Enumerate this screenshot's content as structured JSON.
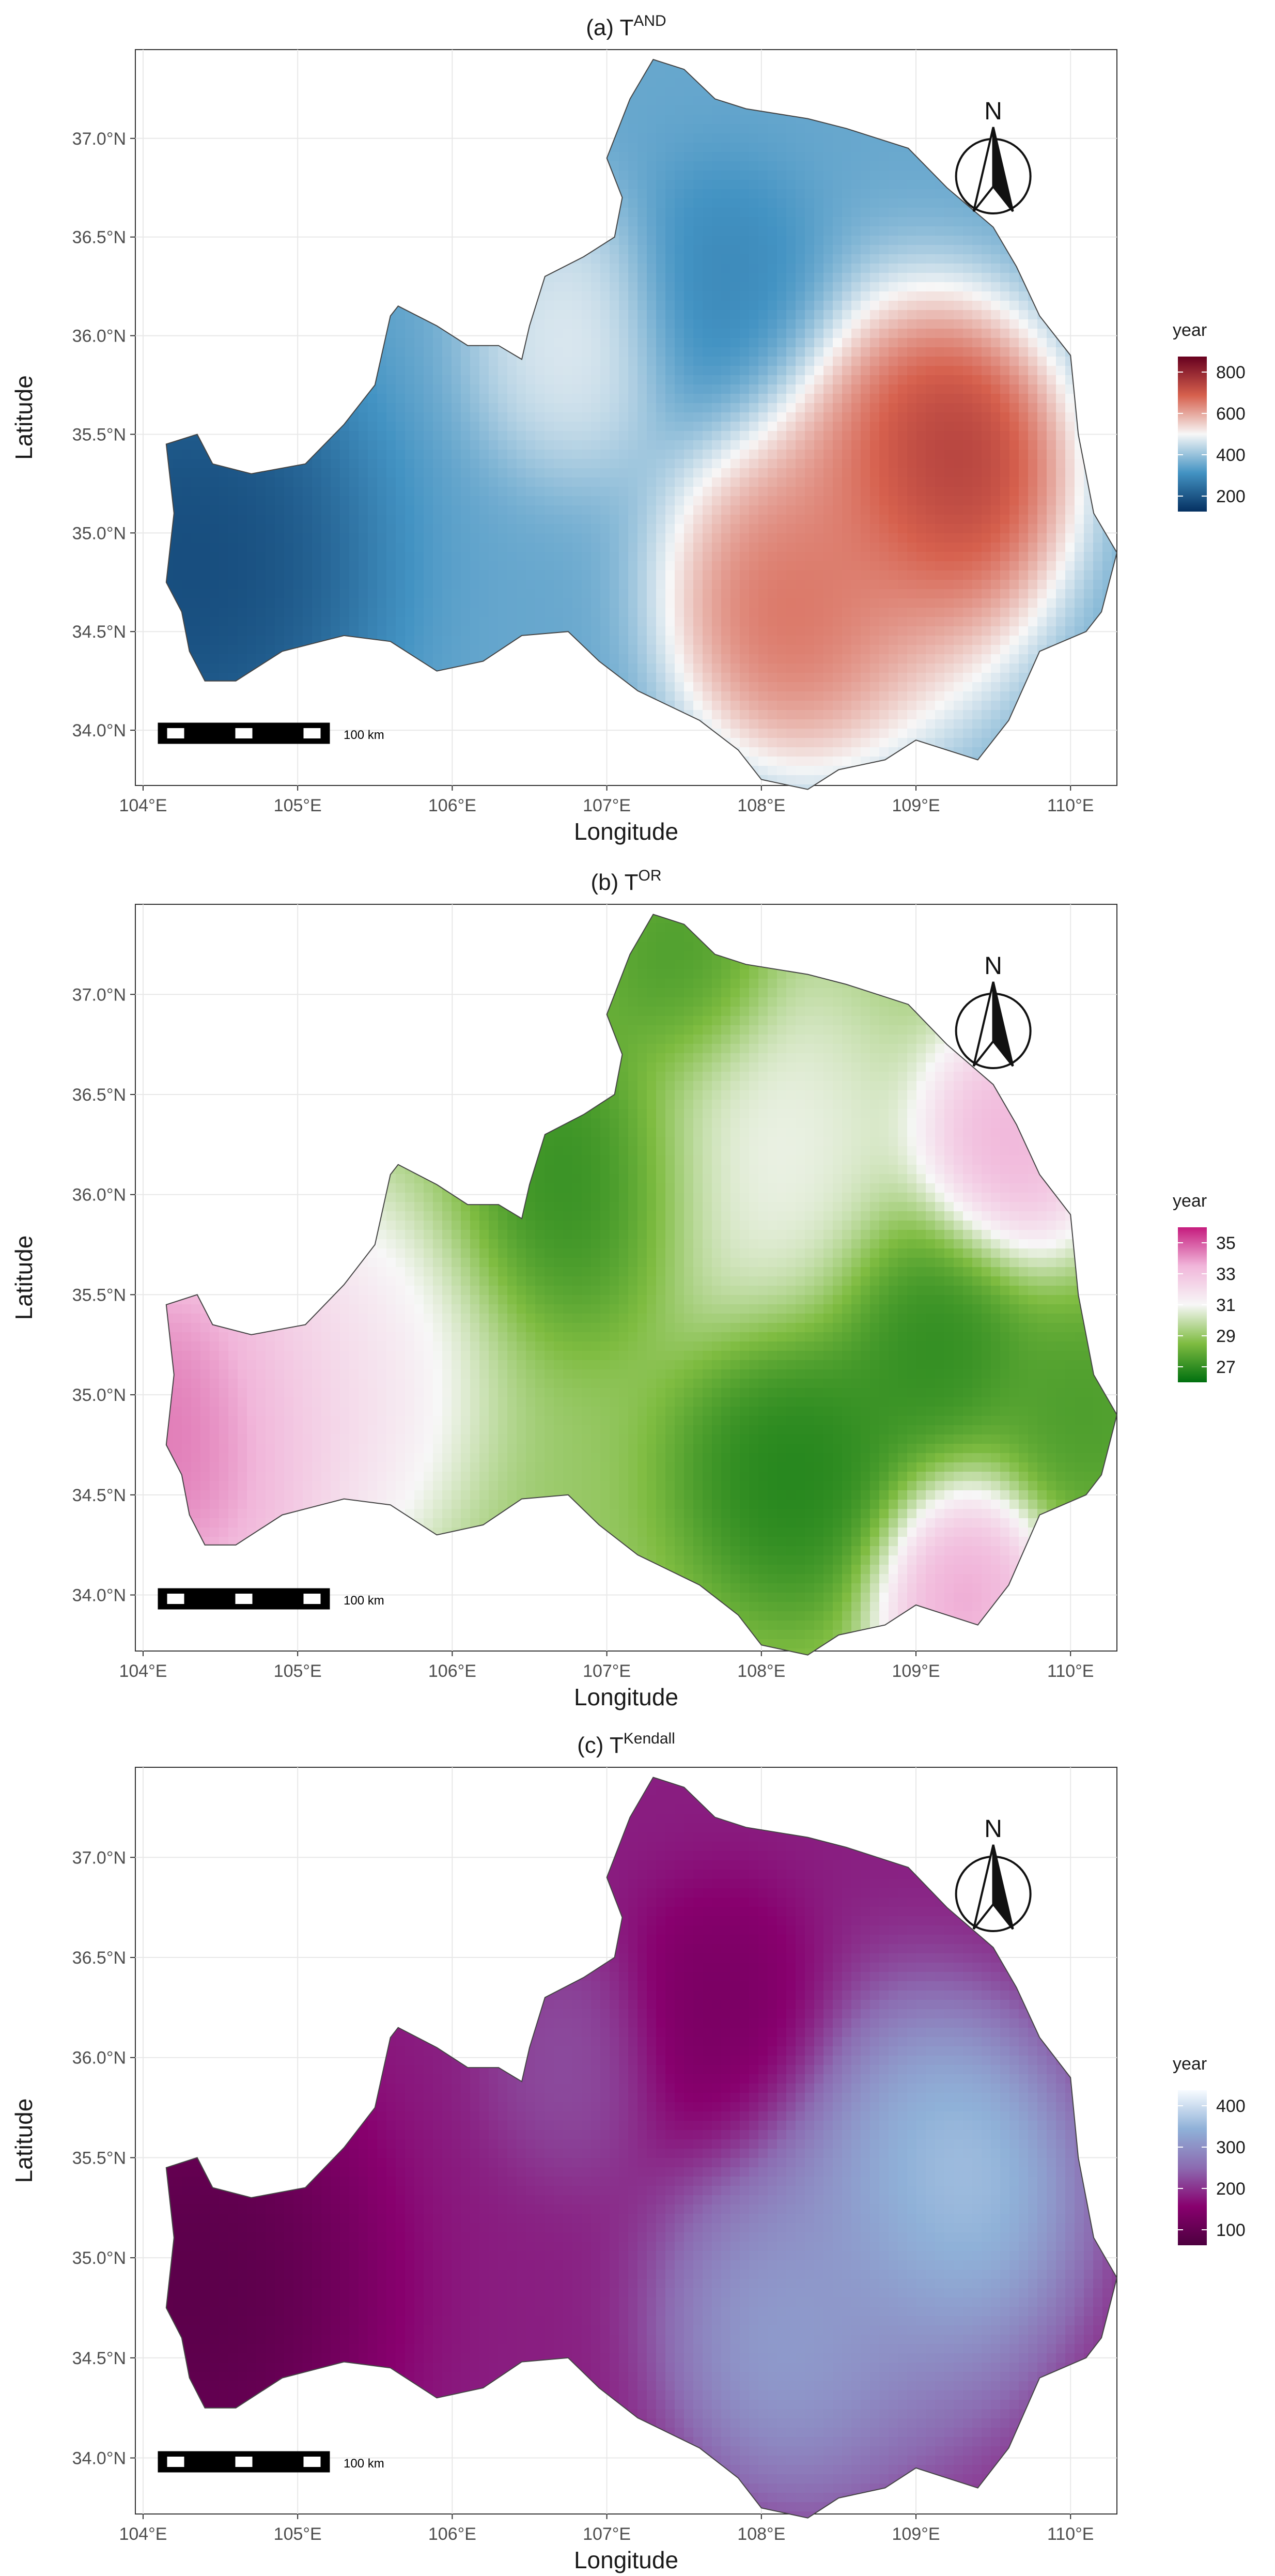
{
  "panels": [
    {
      "title": {
        "prefix": "(a)  T",
        "sup": "AND"
      },
      "legend": {
        "title": "year",
        "ticks": [
          "800",
          "600",
          "400",
          "200"
        ],
        "colors": [
          "#67001f",
          "#d6604d",
          "#f7f7f7",
          "#4393c3",
          "#053061"
        ]
      },
      "blobs": [
        {
          "lon": 109.15,
          "lat": 35.32,
          "level": 1.0,
          "sigma": 0.42
        },
        {
          "lon": 108.2,
          "lat": 34.62,
          "level": 0.82,
          "sigma": 0.38
        },
        {
          "lon": 108.6,
          "lat": 34.95,
          "level": 0.68,
          "sigma": 0.55
        },
        {
          "lon": 106.8,
          "lat": 35.98,
          "level": 0.5,
          "sigma": 0.35
        },
        {
          "lon": 104.3,
          "lat": 34.85,
          "level": 0.02,
          "sigma": 0.6
        },
        {
          "lon": 107.75,
          "lat": 36.15,
          "level": 0.2,
          "sigma": 0.35
        }
      ],
      "base_level": 0.3
    },
    {
      "title": {
        "prefix": "(b)  T",
        "sup": "OR"
      },
      "legend": {
        "title": "year",
        "ticks": [
          "35",
          "33",
          "31",
          "29",
          "27"
        ],
        "colors": [
          "#c51b7d",
          "#f1b6da",
          "#f7f7f7",
          "#7fbc41",
          "#00700f"
        ]
      },
      "blobs": [
        {
          "lon": 104.3,
          "lat": 34.85,
          "level": 1.0,
          "sigma": 0.55
        },
        {
          "lon": 105.2,
          "lat": 35.05,
          "level": 0.62,
          "sigma": 0.5
        },
        {
          "lon": 109.6,
          "lat": 36.25,
          "level": 0.85,
          "sigma": 0.32
        },
        {
          "lon": 109.3,
          "lat": 34.0,
          "level": 0.88,
          "sigma": 0.3
        },
        {
          "lon": 108.0,
          "lat": 36.2,
          "level": 0.52,
          "sigma": 0.5
        },
        {
          "lon": 106.9,
          "lat": 36.1,
          "level": 0.05,
          "sigma": 0.4
        },
        {
          "lon": 107.5,
          "lat": 37.1,
          "level": 0.1,
          "sigma": 0.3
        },
        {
          "lon": 109.1,
          "lat": 35.3,
          "level": 0.05,
          "sigma": 0.35
        },
        {
          "lon": 108.2,
          "lat": 34.65,
          "level": 0.02,
          "sigma": 0.4
        },
        {
          "lon": 110.1,
          "lat": 34.9,
          "level": 0.12,
          "sigma": 0.3
        }
      ],
      "base_level": 0.3
    },
    {
      "title": {
        "prefix": "(c)  T",
        "sup": "Kendall"
      },
      "legend": {
        "title": "year",
        "ticks": [
          "400",
          "300",
          "200",
          "100"
        ],
        "colors": [
          "#f7fbff",
          "#8fb1d8",
          "#8c6bb1",
          "#88006e",
          "#4d003f"
        ]
      },
      "blobs": [
        {
          "lon": 109.15,
          "lat": 35.32,
          "level": 1.0,
          "sigma": 0.45
        },
        {
          "lon": 108.2,
          "lat": 34.62,
          "level": 0.78,
          "sigma": 0.4
        },
        {
          "lon": 108.7,
          "lat": 35.0,
          "level": 0.6,
          "sigma": 0.6
        },
        {
          "lon": 106.8,
          "lat": 35.98,
          "level": 0.45,
          "sigma": 0.3
        },
        {
          "lon": 104.3,
          "lat": 34.85,
          "level": 0.0,
          "sigma": 0.6
        },
        {
          "lon": 107.75,
          "lat": 36.15,
          "level": 0.15,
          "sigma": 0.35
        }
      ],
      "base_level": 0.32
    }
  ],
  "axes": {
    "xlabel": "Longitude",
    "ylabel": "Latitude",
    "xticks": [
      {
        "value": 104,
        "label": "104°E"
      },
      {
        "value": 105,
        "label": "105°E"
      },
      {
        "value": 106,
        "label": "106°E"
      },
      {
        "value": 107,
        "label": "107°E"
      },
      {
        "value": 108,
        "label": "108°E"
      },
      {
        "value": 109,
        "label": "109°E"
      },
      {
        "value": 110,
        "label": "110°E"
      }
    ],
    "yticks": [
      {
        "value": 34.0,
        "label": "34.0°N"
      },
      {
        "value": 34.5,
        "label": "34.5°N"
      },
      {
        "value": 35.0,
        "label": "35.0°N"
      },
      {
        "value": 35.5,
        "label": "35.5°N"
      },
      {
        "value": 36.0,
        "label": "36.0°N"
      },
      {
        "value": 36.5,
        "label": "36.5°N"
      },
      {
        "value": 37.0,
        "label": "37.0°N"
      }
    ],
    "xlim": [
      103.95,
      110.3
    ],
    "ylim": [
      33.72,
      37.45
    ]
  },
  "north_arrow": {
    "label": "N"
  },
  "scale_bar": {
    "label": "100 km"
  },
  "region_outline": [
    [
      104.15,
      34.75
    ],
    [
      104.2,
      35.1
    ],
    [
      104.15,
      35.45
    ],
    [
      104.35,
      35.5
    ],
    [
      104.45,
      35.35
    ],
    [
      104.7,
      35.3
    ],
    [
      105.05,
      35.35
    ],
    [
      105.3,
      35.55
    ],
    [
      105.5,
      35.75
    ],
    [
      105.6,
      36.1
    ],
    [
      105.65,
      36.15
    ],
    [
      105.9,
      36.05
    ],
    [
      106.1,
      35.95
    ],
    [
      106.3,
      35.95
    ],
    [
      106.45,
      35.88
    ],
    [
      106.5,
      36.05
    ],
    [
      106.6,
      36.3
    ],
    [
      106.85,
      36.4
    ],
    [
      107.05,
      36.5
    ],
    [
      107.1,
      36.7
    ],
    [
      107.0,
      36.9
    ],
    [
      107.15,
      37.2
    ],
    [
      107.3,
      37.4
    ],
    [
      107.5,
      37.35
    ],
    [
      107.7,
      37.2
    ],
    [
      107.9,
      37.15
    ],
    [
      108.3,
      37.1
    ],
    [
      108.55,
      37.05
    ],
    [
      108.75,
      37.0
    ],
    [
      108.95,
      36.95
    ],
    [
      109.2,
      36.75
    ],
    [
      109.5,
      36.55
    ],
    [
      109.65,
      36.35
    ],
    [
      109.8,
      36.1
    ],
    [
      110.0,
      35.9
    ],
    [
      110.05,
      35.5
    ],
    [
      110.15,
      35.1
    ],
    [
      110.3,
      34.9
    ],
    [
      110.2,
      34.6
    ],
    [
      110.1,
      34.5
    ],
    [
      109.8,
      34.4
    ],
    [
      109.6,
      34.05
    ],
    [
      109.4,
      33.85
    ],
    [
      109.0,
      33.95
    ],
    [
      108.8,
      33.85
    ],
    [
      108.5,
      33.8
    ],
    [
      108.3,
      33.7
    ],
    [
      108.0,
      33.75
    ],
    [
      107.85,
      33.9
    ],
    [
      107.6,
      34.05
    ],
    [
      107.2,
      34.2
    ],
    [
      106.95,
      34.35
    ],
    [
      106.75,
      34.5
    ],
    [
      106.45,
      34.48
    ],
    [
      106.2,
      34.35
    ],
    [
      105.9,
      34.3
    ],
    [
      105.6,
      34.45
    ],
    [
      105.3,
      34.48
    ],
    [
      104.9,
      34.4
    ],
    [
      104.6,
      34.25
    ],
    [
      104.4,
      34.25
    ],
    [
      104.3,
      34.4
    ],
    [
      104.25,
      34.6
    ]
  ]
}
